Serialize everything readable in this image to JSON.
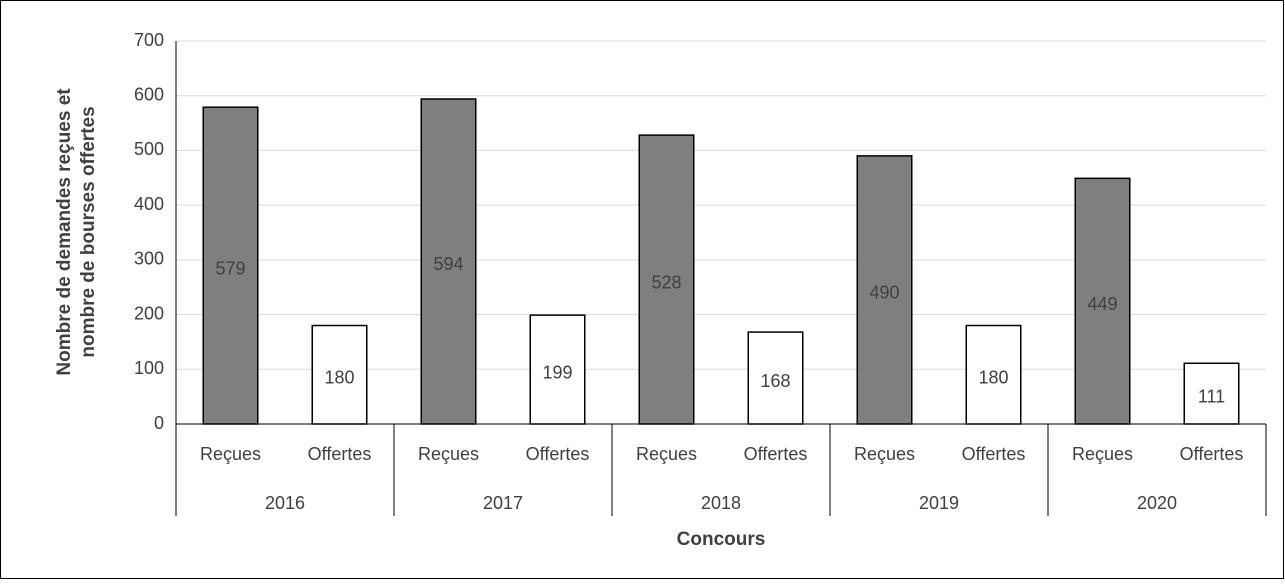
{
  "chart_data": {
    "type": "bar",
    "y_label": [
      "Nombre de demandes reçues et",
      "nombre de bourses offertes"
    ],
    "x_label": "Concours",
    "categories": [
      "Reçues",
      "Offertes",
      "Reçues",
      "Offertes",
      "Reçues",
      "Offertes",
      "Reçues",
      "Offertes",
      "Reçues",
      "Offertes"
    ],
    "groups": [
      "2016",
      "2017",
      "2018",
      "2019",
      "2020"
    ],
    "values": [
      579,
      180,
      594,
      199,
      528,
      168,
      490,
      180,
      449,
      111
    ],
    "colors": [
      "#7f7f7f",
      "#ffffff",
      "#7f7f7f",
      "#ffffff",
      "#7f7f7f",
      "#ffffff",
      "#7f7f7f",
      "#ffffff",
      "#7f7f7f",
      "#ffffff"
    ],
    "ylim": [
      0,
      700
    ],
    "yticks": [
      0,
      100,
      200,
      300,
      400,
      500,
      600,
      700
    ],
    "grid": true
  }
}
